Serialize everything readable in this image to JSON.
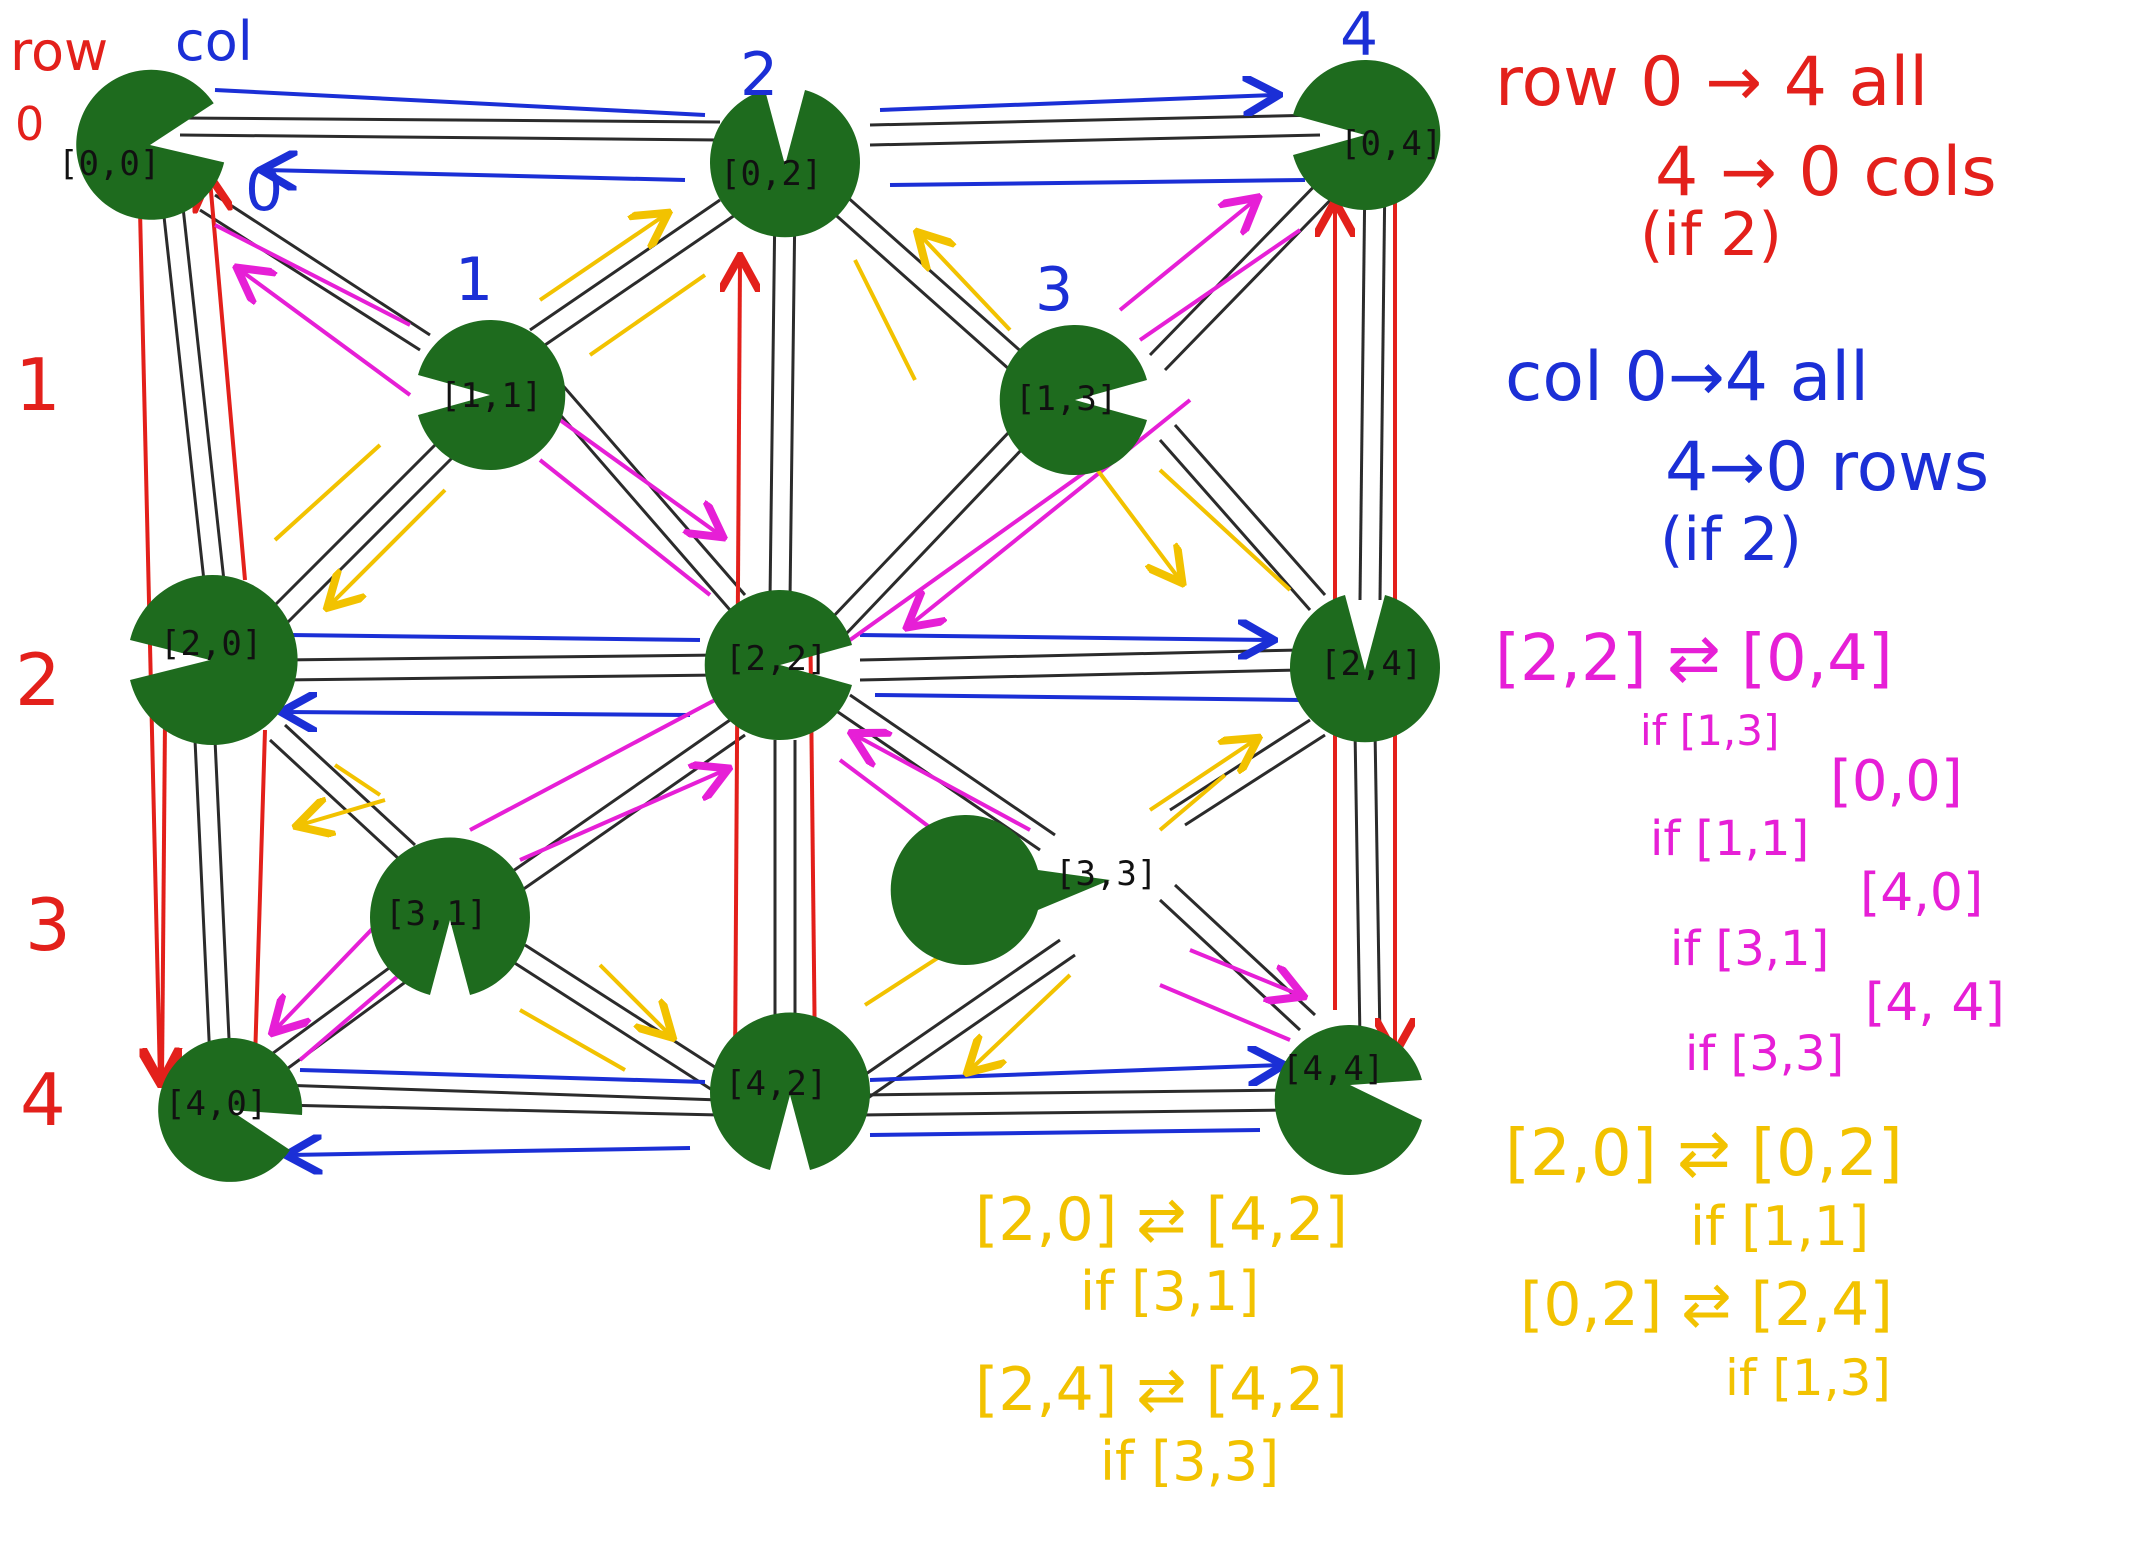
{
  "axis": {
    "row_title": "row",
    "col_title": "col",
    "row_labels": [
      "0",
      "1",
      "2",
      "3",
      "4"
    ],
    "col_labels": [
      "0",
      "1",
      "2",
      "3",
      "4"
    ]
  },
  "nodes": [
    {
      "id": "n00",
      "label": "[0,0]"
    },
    {
      "id": "n02",
      "label": "[0,2]"
    },
    {
      "id": "n04",
      "label": "[0,4]"
    },
    {
      "id": "n11",
      "label": "[1,1]"
    },
    {
      "id": "n13",
      "label": "[1,3]"
    },
    {
      "id": "n20",
      "label": "[2,0]"
    },
    {
      "id": "n22",
      "label": "[2,2]"
    },
    {
      "id": "n24",
      "label": "[2,4]"
    },
    {
      "id": "n31",
      "label": "[3,1]"
    },
    {
      "id": "n33",
      "label": "[3,3]"
    },
    {
      "id": "n40",
      "label": "[4,0]"
    },
    {
      "id": "n42",
      "label": "[4,2]"
    },
    {
      "id": "n44",
      "label": "[4,4]"
    }
  ],
  "notes": {
    "red": {
      "l1": "row 0 → 4  all",
      "l2": "4 → 0  cols",
      "l3": "(if 2)"
    },
    "blue": {
      "l1": "col 0→4  all",
      "l2": "4→0  rows",
      "l3": "(if 2)"
    },
    "magenta": {
      "main": "[2,2]  ⇄  [0,4]",
      "c1": "if [1,3]",
      "t2": "[0,0]",
      "c2": "if [1,1]",
      "t3": "[4,0]",
      "c3": "if [3,1]",
      "t4": "[4, 4]",
      "c4": "if [3,3]"
    },
    "yellow": {
      "a_main": "[2,0]  ⇄  [0,2]",
      "a_if": "if [1,1]",
      "b_main": "[0,2]  ⇄  [2,4]",
      "b_if": "if [1,3]",
      "c_main": "[2,0]  ⇄  [4,2]",
      "c_if": "if [3,1]",
      "d_main": "[2,4]  ⇄  [4,2]",
      "d_if": "if [3,3]"
    }
  },
  "colors": {
    "node": "#1e6b1e",
    "grid_line": "#2b2b2b",
    "red": "#e3201b",
    "blue": "#1b2fd6",
    "magenta": "#e61fd6",
    "yellow": "#f2c200"
  }
}
